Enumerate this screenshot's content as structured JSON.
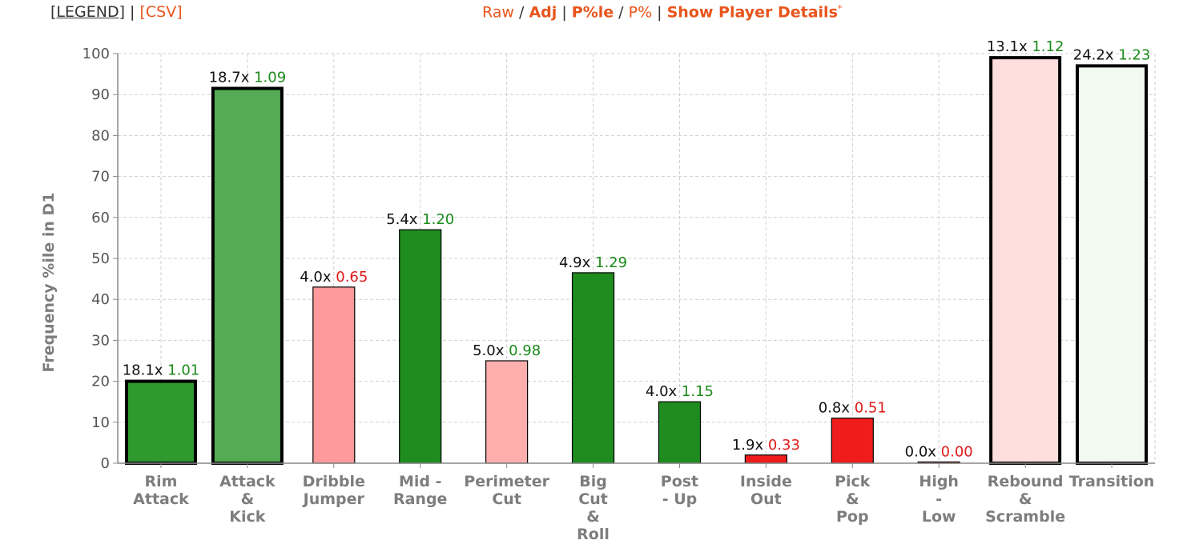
{
  "toolbar": {
    "legend_open": "[",
    "legend": "LEGEND",
    "legend_close": "] | ",
    "csv": "[CSV]",
    "raw": "Raw",
    "sep1": " / ",
    "adj": "Adj",
    "sep2": " | ",
    "pctile": "P%le",
    "sep3": " / ",
    "pct": "P%",
    "sep4": " | ",
    "show_player_details": "Show Player Details",
    "asterisk": "*"
  },
  "colors": {
    "orange_link": "#e8541c",
    "good_text": "#1a8a1a",
    "bad_text": "#e11a1a",
    "axis_text": "#7d7d7d"
  },
  "chart_data": {
    "type": "bar",
    "ylabel": "Frequency %ile in D1",
    "xlabel": "",
    "ylim": [
      0,
      100
    ],
    "yticks": [
      0,
      10,
      20,
      30,
      40,
      50,
      60,
      70,
      80,
      90,
      100
    ],
    "grid": true,
    "categories": [
      [
        "Rim",
        "Attack"
      ],
      [
        "Attack",
        "&",
        "Kick"
      ],
      [
        "Dribble",
        "Jumper"
      ],
      [
        "Mid -",
        "Range"
      ],
      [
        "Perimeter",
        "Cut"
      ],
      [
        "Big",
        "Cut",
        "&",
        "Roll"
      ],
      [
        "Post",
        "- Up"
      ],
      [
        "Inside",
        "Out"
      ],
      [
        "Pick",
        "&",
        "Pop"
      ],
      [
        "High",
        "-",
        "Low"
      ],
      [
        "Rebound",
        "&",
        "Scramble"
      ],
      [
        "Transition"
      ]
    ],
    "values": [
      20,
      91.5,
      43,
      57,
      25,
      46.5,
      15,
      2,
      11,
      0.3,
      99,
      97
    ],
    "frequency_labels": [
      "18.1x",
      "18.7x",
      "4.0x",
      "5.4x",
      "5.0x",
      "4.9x",
      "4.0x",
      "1.9x",
      "0.8x",
      "0.0x",
      "13.1x",
      "24.2x"
    ],
    "efficiency_labels": [
      "1.01",
      "1.09",
      "0.65",
      "1.20",
      "0.98",
      "1.29",
      "1.15",
      "0.33",
      "0.51",
      "0.00",
      "1.12",
      "1.23"
    ],
    "efficiency_good": [
      true,
      true,
      false,
      true,
      true,
      true,
      true,
      false,
      false,
      false,
      true,
      true
    ],
    "bar_colors": [
      "#2e9a2e",
      "#54ab54",
      "#ff9a9a",
      "#1f8c1f",
      "#ffaeae",
      "#1f8c1f",
      "#1f8c1f",
      "#ee1c1c",
      "#ee1c1c",
      "#ee1c1c",
      "#ffdede",
      "#f1f9f1"
    ],
    "highlighted": [
      true,
      true,
      false,
      false,
      false,
      false,
      false,
      false,
      false,
      false,
      true,
      true
    ]
  }
}
